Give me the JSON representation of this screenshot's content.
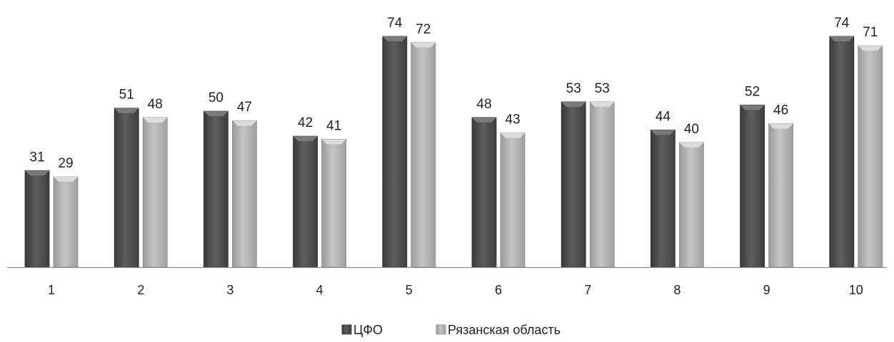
{
  "chart_data": {
    "type": "bar",
    "categories": [
      "1",
      "2",
      "3",
      "4",
      "5",
      "6",
      "7",
      "8",
      "9",
      "10"
    ],
    "series": [
      {
        "name": "ЦФО",
        "values": [
          31,
          51,
          50,
          42,
          74,
          48,
          53,
          44,
          52,
          74
        ],
        "color": "#545454"
      },
      {
        "name": "Рязанская область",
        "values": [
          29,
          48,
          47,
          41,
          72,
          43,
          53,
          40,
          46,
          71
        ],
        "color": "#a9a9a9"
      }
    ],
    "ylim": [
      0,
      80
    ],
    "grid": false,
    "data_labels": true,
    "legend_position": "bottom"
  }
}
